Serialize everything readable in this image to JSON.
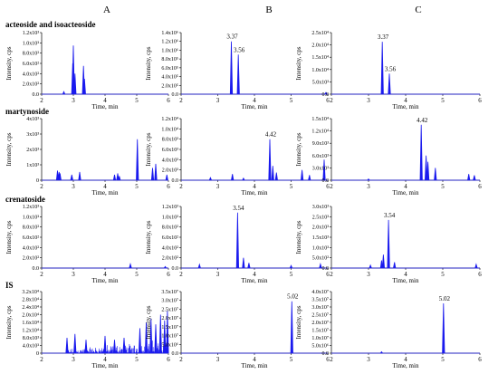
{
  "column_labels": [
    "A",
    "B",
    "C"
  ],
  "row_labels": [
    "acteoside and isoacteoside",
    "martynoside",
    "crenatoside",
    "IS"
  ],
  "xlabel": "Time, min",
  "ylabel": "Intensity, cps",
  "colors": {
    "trace": "#1a1aee",
    "axis": "#000000"
  },
  "chart_data": [
    {
      "type": "line",
      "panel": "A",
      "row": "acteoside and isoacteoside",
      "xlim": [
        2,
        6
      ],
      "ylim": [
        0,
        120
      ],
      "yticks": [
        "0.0",
        "2.0x10²",
        "4.0x10²",
        "6.0x10²",
        "8.0x10²",
        "1.0x10³",
        "1.2x10³"
      ],
      "xticks": [
        "2",
        "3",
        "4",
        "5",
        "6"
      ],
      "peaks": [
        {
          "x": 3.0,
          "y": 95
        },
        {
          "x": 2.98,
          "y": 60
        },
        {
          "x": 3.05,
          "y": 40
        },
        {
          "x": 3.32,
          "y": 55
        },
        {
          "x": 3.35,
          "y": 30
        },
        {
          "x": 2.7,
          "y": 5
        }
      ],
      "labels": []
    },
    {
      "type": "line",
      "panel": "B",
      "row": "acteoside and isoacteoside",
      "xlim": [
        2,
        6
      ],
      "ylim": [
        0,
        140
      ],
      "yticks": [
        "0.0",
        "2.0x10⁵",
        "4.0x10⁵",
        "6.0x10⁵",
        "8.0x10⁵",
        "1.0x10⁶",
        "1.2x10⁶",
        "1.4x10⁶"
      ],
      "xticks": [
        "2",
        "3",
        "4",
        "5",
        "6"
      ],
      "peaks": [
        {
          "x": 3.37,
          "y": 120
        },
        {
          "x": 3.56,
          "y": 90
        },
        {
          "x": 5.95,
          "y": 4
        }
      ],
      "labels": [
        {
          "x": 3.37,
          "y": 120,
          "text": "3.37"
        },
        {
          "x": 3.56,
          "y": 90,
          "text": "3.56"
        }
      ]
    },
    {
      "type": "line",
      "panel": "C",
      "row": "acteoside and isoacteoside",
      "xlim": [
        2,
        6
      ],
      "ylim": [
        0,
        27
      ],
      "yticks": [
        "0.0",
        "5.0x10³",
        "1.0x10⁴",
        "1.5x10⁴",
        "2.0x10⁴",
        "2.5x10⁴"
      ],
      "xticks": [
        "2",
        "3",
        "4",
        "5",
        "6"
      ],
      "peaks": [
        {
          "x": 3.37,
          "y": 23
        },
        {
          "x": 3.56,
          "y": 9
        }
      ],
      "labels": [
        {
          "x": 3.37,
          "y": 23,
          "text": "3.37"
        },
        {
          "x": 3.56,
          "y": 9,
          "text": "3.56"
        }
      ]
    },
    {
      "type": "line",
      "panel": "A",
      "row": "martynoside",
      "xlim": [
        2,
        6
      ],
      "ylim": [
        0,
        45
      ],
      "yticks": [
        "0",
        "1x10³",
        "2x10³",
        "3x10³",
        "4x10³"
      ],
      "xticks": [
        "2",
        "3",
        "4",
        "5",
        "6"
      ],
      "peaks": [
        {
          "x": 2.5,
          "y": 7
        },
        {
          "x": 2.55,
          "y": 6
        },
        {
          "x": 2.58,
          "y": 5
        },
        {
          "x": 2.95,
          "y": 4
        },
        {
          "x": 3.2,
          "y": 6
        },
        {
          "x": 4.3,
          "y": 4
        },
        {
          "x": 4.4,
          "y": 5
        },
        {
          "x": 4.45,
          "y": 3
        },
        {
          "x": 5.02,
          "y": 30
        },
        {
          "x": 5.5,
          "y": 9
        },
        {
          "x": 5.6,
          "y": 12
        },
        {
          "x": 5.95,
          "y": 4
        }
      ],
      "labels": []
    },
    {
      "type": "line",
      "panel": "B",
      "row": "martynoside",
      "xlim": [
        2,
        6
      ],
      "ylim": [
        0,
        120
      ],
      "yticks": [
        "0.0",
        "2.0x10³",
        "4.0x10³",
        "6.0x10³",
        "8.0x10³",
        "1.0x10⁴",
        "1.2x10⁴"
      ],
      "xticks": [
        "2",
        "3",
        "4",
        "5",
        "6"
      ],
      "peaks": [
        {
          "x": 4.42,
          "y": 80
        },
        {
          "x": 4.5,
          "y": 28
        },
        {
          "x": 4.6,
          "y": 15
        },
        {
          "x": 5.3,
          "y": 20
        },
        {
          "x": 5.5,
          "y": 10
        },
        {
          "x": 5.9,
          "y": 40
        },
        {
          "x": 3.4,
          "y": 12
        },
        {
          "x": 2.8,
          "y": 5
        },
        {
          "x": 3.7,
          "y": 4
        }
      ],
      "labels": [
        {
          "x": 4.42,
          "y": 80,
          "text": "4.42"
        }
      ]
    },
    {
      "type": "line",
      "panel": "C",
      "row": "martynoside",
      "xlim": [
        2,
        6
      ],
      "ylim": [
        0,
        15
      ],
      "yticks": [
        "0.0",
        "3.0x10³",
        "6.0x10³",
        "9.0x10³",
        "1.2x10⁴",
        "1.5x10⁴"
      ],
      "xticks": [
        "2",
        "3",
        "4",
        "5",
        "6"
      ],
      "peaks": [
        {
          "x": 4.42,
          "y": 13.5
        },
        {
          "x": 4.55,
          "y": 6
        },
        {
          "x": 4.6,
          "y": 4.5
        },
        {
          "x": 4.8,
          "y": 3
        },
        {
          "x": 5.7,
          "y": 1.5
        },
        {
          "x": 5.85,
          "y": 1.2
        },
        {
          "x": 3.0,
          "y": 0.3
        }
      ],
      "labels": [
        {
          "x": 4.42,
          "y": 13.5,
          "text": "4.42"
        }
      ]
    },
    {
      "type": "line",
      "panel": "A",
      "row": "crenatoside",
      "xlim": [
        2,
        6
      ],
      "ylim": [
        0,
        120
      ],
      "yticks": [
        "0.0",
        "2.0x10²",
        "4.0x10²",
        "6.0x10²",
        "8.0x10²",
        "1.0x10³",
        "1.2x10³"
      ],
      "xticks": [
        "2",
        "3",
        "4",
        "5",
        "6"
      ],
      "peaks": [
        {
          "x": 4.8,
          "y": 8
        },
        {
          "x": 5.9,
          "y": 3
        }
      ],
      "labels": []
    },
    {
      "type": "line",
      "panel": "B",
      "row": "crenatoside",
      "xlim": [
        2,
        6
      ],
      "ylim": [
        0,
        120
      ],
      "yticks": [
        "0.0",
        "2.0x10²",
        "4.0x10²",
        "6.0x10²",
        "8.0x10²",
        "1.0x10³",
        "1.2x10³"
      ],
      "xticks": [
        "2",
        "3",
        "4",
        "5",
        "6"
      ],
      "peaks": [
        {
          "x": 3.54,
          "y": 108
        },
        {
          "x": 3.7,
          "y": 20
        },
        {
          "x": 3.85,
          "y": 10
        },
        {
          "x": 2.5,
          "y": 7
        },
        {
          "x": 5.0,
          "y": 5
        },
        {
          "x": 5.8,
          "y": 8
        }
      ],
      "labels": [
        {
          "x": 3.54,
          "y": 108,
          "text": "3.54"
        }
      ]
    },
    {
      "type": "line",
      "panel": "C",
      "row": "crenatoside",
      "xlim": [
        2,
        6
      ],
      "ylim": [
        0,
        3.2
      ],
      "yticks": [
        "0.0",
        "5.0x10²",
        "1.0x10³",
        "1.5x10³",
        "2.0x10³",
        "2.5x10³",
        "3.0x10³"
      ],
      "xticks": [
        "2",
        "3",
        "4",
        "5",
        "6"
      ],
      "peaks": [
        {
          "x": 3.54,
          "y": 2.5
        },
        {
          "x": 3.4,
          "y": 0.7
        },
        {
          "x": 3.35,
          "y": 0.4
        },
        {
          "x": 3.7,
          "y": 0.3
        },
        {
          "x": 3.05,
          "y": 0.15
        },
        {
          "x": 5.9,
          "y": 0.2
        }
      ],
      "labels": [
        {
          "x": 3.54,
          "y": 2.5,
          "text": "3.54"
        }
      ]
    },
    {
      "type": "line",
      "panel": "A",
      "row": "IS",
      "xlim": [
        2,
        6
      ],
      "ylim": [
        0,
        32
      ],
      "yticks": [
        "0",
        "4.0x10³",
        "8.0x10³",
        "1.2x10⁴",
        "1.6x10⁴",
        "2.0x10⁴",
        "2.4x10⁴",
        "2.8x10⁴",
        "3.2x10⁴"
      ],
      "xticks": [
        "2",
        "3",
        "4",
        "5",
        "6"
      ],
      "noise": {
        "start": 2.8,
        "end": 6.0,
        "level": "high"
      },
      "peaks": [
        {
          "x": 2.8,
          "y": 8
        },
        {
          "x": 3.05,
          "y": 10
        },
        {
          "x": 3.4,
          "y": 7
        },
        {
          "x": 4.0,
          "y": 9
        },
        {
          "x": 4.3,
          "y": 7
        },
        {
          "x": 4.6,
          "y": 8
        },
        {
          "x": 5.1,
          "y": 13
        },
        {
          "x": 5.3,
          "y": 16
        },
        {
          "x": 5.45,
          "y": 18
        },
        {
          "x": 5.6,
          "y": 15
        },
        {
          "x": 5.75,
          "y": 20
        },
        {
          "x": 5.88,
          "y": 17
        },
        {
          "x": 5.97,
          "y": 22
        }
      ],
      "labels": []
    },
    {
      "type": "line",
      "panel": "B",
      "row": "IS",
      "xlim": [
        2,
        6
      ],
      "ylim": [
        0,
        38
      ],
      "yticks": [
        "0.0",
        "5.0x10⁶",
        "1.0x10⁷",
        "1.5x10⁷",
        "2.0x10⁷",
        "2.5x10⁷",
        "3.0x10⁷",
        "3.5x10⁷"
      ],
      "xticks": [
        "2",
        "3",
        "4",
        "5",
        "6"
      ],
      "peaks": [
        {
          "x": 5.02,
          "y": 32
        }
      ],
      "labels": [
        {
          "x": 5.02,
          "y": 32,
          "text": "5.02"
        }
      ]
    },
    {
      "type": "line",
      "panel": "C",
      "row": "IS",
      "xlim": [
        2,
        6
      ],
      "ylim": [
        0,
        42
      ],
      "yticks": [
        "0.0",
        "5.0x10⁶",
        "1.0x10⁷",
        "1.5x10⁷",
        "2.0x10⁷",
        "2.5x10⁷",
        "3.0x10⁷",
        "3.5x10⁷",
        "4.0x10⁷"
      ],
      "xticks": [
        "2",
        "3",
        "4",
        "5",
        "6"
      ],
      "peaks": [
        {
          "x": 5.02,
          "y": 34
        },
        {
          "x": 3.35,
          "y": 1
        }
      ],
      "labels": [
        {
          "x": 5.02,
          "y": 34,
          "text": "5.02"
        }
      ]
    }
  ]
}
